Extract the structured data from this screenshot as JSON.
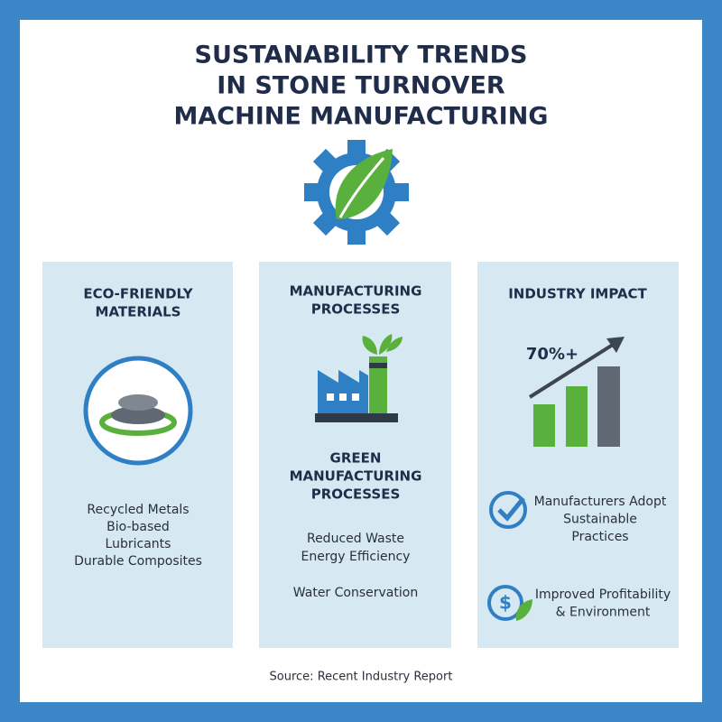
{
  "header": {
    "title_lines": [
      "SUSTANABILITY TRENDS",
      "IN STONE TURNOVER",
      "MACHINE MANUFACTURING"
    ]
  },
  "panels": [
    {
      "title_lines": [
        "ECO-FRIENDLY",
        "MATERIALS"
      ],
      "items": [
        "Recycled Metals",
        "Bio-based",
        "Lubricants",
        "Durable Composites"
      ]
    },
    {
      "title_lines": [
        "MANUFACTURING",
        "PROCESSES"
      ],
      "subtitle_lines": [
        "GREEN",
        "MANUFACTURING",
        "PROCESSES"
      ],
      "items": [
        "Reduced Waste",
        "Energy Efficiency",
        "Water Conservation"
      ]
    },
    {
      "title_lines": [
        "INDUSTRY IMPACT"
      ],
      "icon_label": "70%+",
      "points": [
        {
          "lines": [
            "Manufacturers Adopt",
            "Sustainable",
            "Practices"
          ]
        },
        {
          "lines": [
            "Improved Profitability",
            "& Environment"
          ]
        }
      ]
    }
  ],
  "footer": {
    "source": "Source: Recent Industry Report"
  }
}
